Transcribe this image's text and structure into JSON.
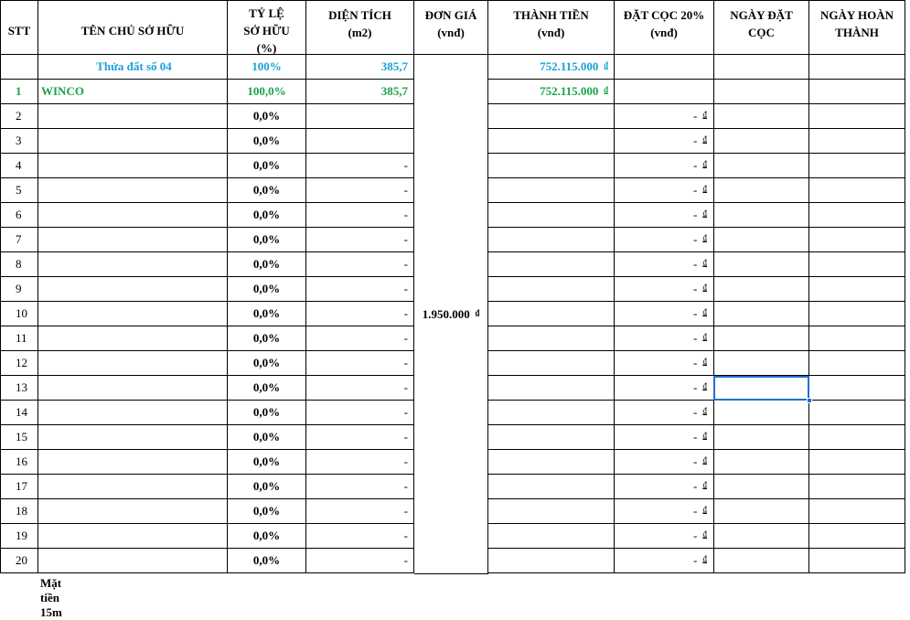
{
  "headers": {
    "stt": "STT",
    "owner": "TÊN CHỦ SỞ HỮU",
    "ratio": [
      "TỶ LỆ",
      "SỞ HỮU",
      "(%)"
    ],
    "area": [
      "DIỆN TÍCH",
      "(m2)"
    ],
    "unit_price": [
      "ĐƠN GIÁ",
      "(vnđ)"
    ],
    "total": [
      "THÀNH TIỀN",
      "(vnđ)"
    ],
    "deposit": [
      "ĐẶT CỌC 20%",
      "(vnđ)"
    ],
    "deposit_date": [
      "NGÀY ĐẶT",
      "CỌC"
    ],
    "finish_date": [
      "NGÀY HOÀN",
      "THÀNH"
    ]
  },
  "unit_price_value": "1.950.000",
  "currency_symbol": "₫",
  "plot_row": {
    "stt": "",
    "owner": "Thửa đất số 04",
    "ratio": "100%",
    "area": "385,7",
    "total": "752.115.000",
    "deposit": ""
  },
  "rows": [
    {
      "stt": "1",
      "owner": "WINCO",
      "ratio": "100,0%",
      "area": "385,7",
      "total": "752.115.000",
      "deposit": ""
    },
    {
      "stt": "2",
      "owner": "",
      "ratio": "0,0%",
      "area": "",
      "total": "",
      "deposit": "-"
    },
    {
      "stt": "3",
      "owner": "",
      "ratio": "0,0%",
      "area": "",
      "total": "",
      "deposit": "-"
    },
    {
      "stt": "4",
      "owner": "",
      "ratio": "0,0%",
      "area": "-",
      "total": "",
      "deposit": "-"
    },
    {
      "stt": "5",
      "owner": "",
      "ratio": "0,0%",
      "area": "-",
      "total": "",
      "deposit": "-"
    },
    {
      "stt": "6",
      "owner": "",
      "ratio": "0,0%",
      "area": "-",
      "total": "",
      "deposit": "-"
    },
    {
      "stt": "7",
      "owner": "",
      "ratio": "0,0%",
      "area": "-",
      "total": "",
      "deposit": "-"
    },
    {
      "stt": "8",
      "owner": "",
      "ratio": "0,0%",
      "area": "-",
      "total": "",
      "deposit": "-"
    },
    {
      "stt": "9",
      "owner": "",
      "ratio": "0,0%",
      "area": "-",
      "total": "",
      "deposit": "-"
    },
    {
      "stt": "10",
      "owner": "",
      "ratio": "0,0%",
      "area": "-",
      "total": "",
      "deposit": "-"
    },
    {
      "stt": "11",
      "owner": "",
      "ratio": "0,0%",
      "area": "-",
      "total": "",
      "deposit": "-"
    },
    {
      "stt": "12",
      "owner": "",
      "ratio": "0,0%",
      "area": "-",
      "total": "",
      "deposit": "-"
    },
    {
      "stt": "13",
      "owner": "",
      "ratio": "0,0%",
      "area": "-",
      "total": "",
      "deposit": "-"
    },
    {
      "stt": "14",
      "owner": "",
      "ratio": "0,0%",
      "area": "-",
      "total": "",
      "deposit": "-"
    },
    {
      "stt": "15",
      "owner": "",
      "ratio": "0,0%",
      "area": "-",
      "total": "",
      "deposit": "-"
    },
    {
      "stt": "16",
      "owner": "",
      "ratio": "0,0%",
      "area": "-",
      "total": "",
      "deposit": "-"
    },
    {
      "stt": "17",
      "owner": "",
      "ratio": "0,0%",
      "area": "-",
      "total": "",
      "deposit": "-"
    },
    {
      "stt": "18",
      "owner": "",
      "ratio": "0,0%",
      "area": "-",
      "total": "",
      "deposit": "-"
    },
    {
      "stt": "19",
      "owner": "",
      "ratio": "0,0%",
      "area": "-",
      "total": "",
      "deposit": "-"
    },
    {
      "stt": "20",
      "owner": "",
      "ratio": "0,0%",
      "area": "-",
      "total": "",
      "deposit": "-"
    }
  ],
  "footer_note": "Mặt tiền 15m",
  "colors": {
    "plot_row": "#1aa0d8",
    "owner_row": "#1aa34a",
    "selection": "#1f6fd1"
  }
}
